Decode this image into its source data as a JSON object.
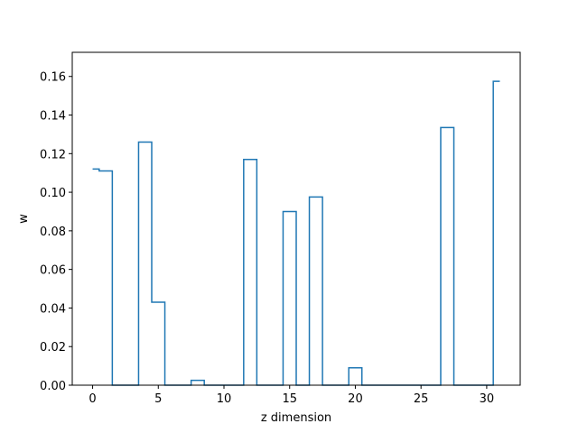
{
  "chart_data": {
    "type": "line",
    "drawstyle": "steps-mid",
    "xlabel": "z dimension",
    "ylabel": "w",
    "xlim": [
      -1.55,
      32.55
    ],
    "ylim": [
      0,
      0.1725
    ],
    "x_ticks": [
      0,
      5,
      10,
      15,
      20,
      25,
      30
    ],
    "y_ticks": [
      0.0,
      0.02,
      0.04,
      0.06,
      0.08,
      0.1,
      0.12,
      0.14,
      0.16
    ],
    "y_tick_decimals": 2,
    "grid": false,
    "legend": "none",
    "series": [
      {
        "color": "#1f77b4",
        "x": [
          0,
          1,
          2,
          3,
          4,
          5,
          6,
          7,
          8,
          9,
          10,
          11,
          12,
          13,
          14,
          15,
          16,
          17,
          18,
          19,
          20,
          21,
          22,
          23,
          24,
          25,
          26,
          27,
          28,
          29,
          30,
          31
        ],
        "values": [
          0.112,
          0.111,
          0,
          0,
          0.126,
          0.043,
          0,
          0,
          0.0025,
          0,
          0,
          0,
          0.117,
          0,
          0,
          0.09,
          0,
          0.0975,
          0,
          0,
          0.009,
          0,
          0,
          0,
          0,
          0,
          0,
          0.1335,
          0,
          0,
          0,
          0.1575
        ]
      }
    ]
  }
}
